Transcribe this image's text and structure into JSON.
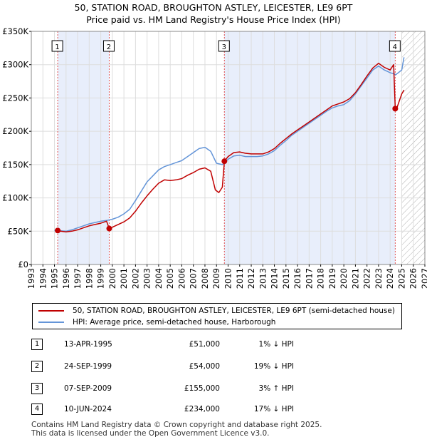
{
  "title_line1": "50, STATION ROAD, BROUGHTON ASTLEY, LEICESTER, LE9 6PT",
  "title_line2": "Price paid vs. HM Land Registry's House Price Index (HPI)",
  "colors": {
    "property_line": "#c00000",
    "hpi_line": "#6495d8",
    "ownership_shade": "#e8eefb",
    "future_hatch": "#999999",
    "marker_line": "#e05050"
  },
  "chart_data": {
    "type": "line",
    "xlim": [
      1993,
      2027
    ],
    "ylim": [
      0,
      350000
    ],
    "x_ticks": [
      "1993",
      "1994",
      "1995",
      "1996",
      "1997",
      "1998",
      "1999",
      "2000",
      "2001",
      "2002",
      "2003",
      "2004",
      "2005",
      "2006",
      "2007",
      "2008",
      "2009",
      "2010",
      "2011",
      "2012",
      "2013",
      "2014",
      "2015",
      "2016",
      "2017",
      "2018",
      "2019",
      "2020",
      "2021",
      "2022",
      "2023",
      "2024",
      "2025",
      "2026",
      "2027"
    ],
    "y_ticks": [
      {
        "value": 0,
        "label": "£0"
      },
      {
        "value": 50000,
        "label": "£50K"
      },
      {
        "value": 100000,
        "label": "£100K"
      },
      {
        "value": 150000,
        "label": "£150K"
      },
      {
        "value": 200000,
        "label": "£200K"
      },
      {
        "value": 250000,
        "label": "£250K"
      },
      {
        "value": 300000,
        "label": "£300K"
      },
      {
        "value": 350000,
        "label": "£350K"
      }
    ],
    "grid": true,
    "shaded_ranges": [
      [
        1995.28,
        1999.73
      ],
      [
        2009.68,
        2024.44
      ]
    ],
    "future_hatch_from": 2025.0,
    "series": [
      {
        "name": "HPI: Average price, semi-detached house, Harborough",
        "x": [
          1995.0,
          1995.5,
          1996.0,
          1996.5,
          1997.0,
          1997.5,
          1998.0,
          1998.5,
          1999.0,
          1999.5,
          2000.0,
          2000.5,
          2001.0,
          2001.5,
          2002.0,
          2002.5,
          2003.0,
          2003.5,
          2004.0,
          2004.5,
          2005.0,
          2005.5,
          2006.0,
          2006.5,
          2007.0,
          2007.5,
          2008.0,
          2008.5,
          2009.0,
          2009.5,
          2010.0,
          2010.5,
          2011.0,
          2011.5,
          2012.0,
          2012.5,
          2013.0,
          2013.5,
          2014.0,
          2014.5,
          2015.0,
          2015.5,
          2016.0,
          2016.5,
          2017.0,
          2017.5,
          2018.0,
          2018.5,
          2019.0,
          2019.5,
          2020.0,
          2020.5,
          2021.0,
          2021.5,
          2022.0,
          2022.5,
          2023.0,
          2023.5,
          2024.0,
          2024.5,
          2025.0,
          2025.2
        ],
        "values": [
          51000,
          50500,
          50000,
          52000,
          55000,
          58000,
          61000,
          63000,
          65000,
          66000,
          68000,
          71000,
          76000,
          83000,
          96000,
          110000,
          124000,
          133000,
          142000,
          147000,
          150000,
          153000,
          156000,
          162000,
          168000,
          174000,
          176000,
          170000,
          152000,
          150000,
          158000,
          163000,
          164000,
          162000,
          162000,
          162000,
          163000,
          166000,
          171000,
          179000,
          186000,
          194000,
          200000,
          206000,
          212000,
          218000,
          224000,
          230000,
          235000,
          238000,
          240000,
          246000,
          256000,
          268000,
          280000,
          292000,
          298000,
          292000,
          288000,
          285000,
          292000,
          311000
        ]
      },
      {
        "name": "50, STATION ROAD, BROUGHTON ASTLEY, LEICESTER, LE9 6PT (semi-detached house)",
        "x": [
          1995.28,
          1995.5,
          1996.0,
          1996.5,
          1997.0,
          1997.5,
          1998.0,
          1998.5,
          1999.0,
          1999.5,
          1999.73,
          2000.0,
          2000.5,
          2001.0,
          2001.5,
          2002.0,
          2002.5,
          2003.0,
          2003.5,
          2004.0,
          2004.5,
          2005.0,
          2005.5,
          2006.0,
          2006.5,
          2007.0,
          2007.5,
          2008.0,
          2008.5,
          2008.9,
          2009.2,
          2009.5,
          2009.68,
          2010.0,
          2010.5,
          2011.0,
          2011.5,
          2012.0,
          2012.5,
          2013.0,
          2013.5,
          2014.0,
          2014.5,
          2015.0,
          2015.5,
          2016.0,
          2016.5,
          2017.0,
          2017.5,
          2018.0,
          2018.5,
          2019.0,
          2019.5,
          2020.0,
          2020.5,
          2021.0,
          2021.5,
          2022.0,
          2022.5,
          2023.0,
          2023.5,
          2024.0,
          2024.3,
          2024.44,
          2024.6,
          2024.8,
          2025.0,
          2025.2
        ],
        "values": [
          51000,
          50000,
          49000,
          50000,
          52000,
          55000,
          58000,
          60000,
          62000,
          65000,
          54000,
          56000,
          60000,
          64000,
          70000,
          80000,
          92000,
          103000,
          113000,
          122000,
          127000,
          126000,
          127000,
          129000,
          134000,
          138000,
          143000,
          145000,
          140000,
          112000,
          108000,
          116000,
          155000,
          162000,
          168000,
          169000,
          167000,
          166000,
          166000,
          166000,
          169000,
          174000,
          182000,
          189000,
          196000,
          202000,
          208000,
          214000,
          220000,
          226000,
          232000,
          238000,
          241000,
          244000,
          249000,
          258000,
          270000,
          283000,
          295000,
          302000,
          296000,
          292000,
          300000,
          234000,
          236000,
          246000,
          256000,
          262000
        ]
      }
    ],
    "sales": [
      {
        "label": "1",
        "x": 1995.28,
        "value": 51000
      },
      {
        "label": "2",
        "x": 1999.73,
        "value": 54000
      },
      {
        "label": "3",
        "x": 2009.68,
        "value": 155000
      },
      {
        "label": "4",
        "x": 2024.44,
        "value": 234000
      }
    ]
  },
  "legend": {
    "property": "50, STATION ROAD, BROUGHTON ASTLEY, LEICESTER, LE9 6PT (semi-detached house)",
    "hpi": "HPI: Average price, semi-detached house, Harborough"
  },
  "transactions": [
    {
      "num": "1",
      "date": "13-APR-1995",
      "price": "£51,000",
      "hpi": "1% ↓ HPI"
    },
    {
      "num": "2",
      "date": "24-SEP-1999",
      "price": "£54,000",
      "hpi": "19% ↓ HPI"
    },
    {
      "num": "3",
      "date": "07-SEP-2009",
      "price": "£155,000",
      "hpi": "3% ↑ HPI"
    },
    {
      "num": "4",
      "date": "10-JUN-2024",
      "price": "£234,000",
      "hpi": "17% ↓ HPI"
    }
  ],
  "footer_line1": "Contains HM Land Registry data © Crown copyright and database right 2025.",
  "footer_line2": "This data is licensed under the Open Government Licence v3.0."
}
